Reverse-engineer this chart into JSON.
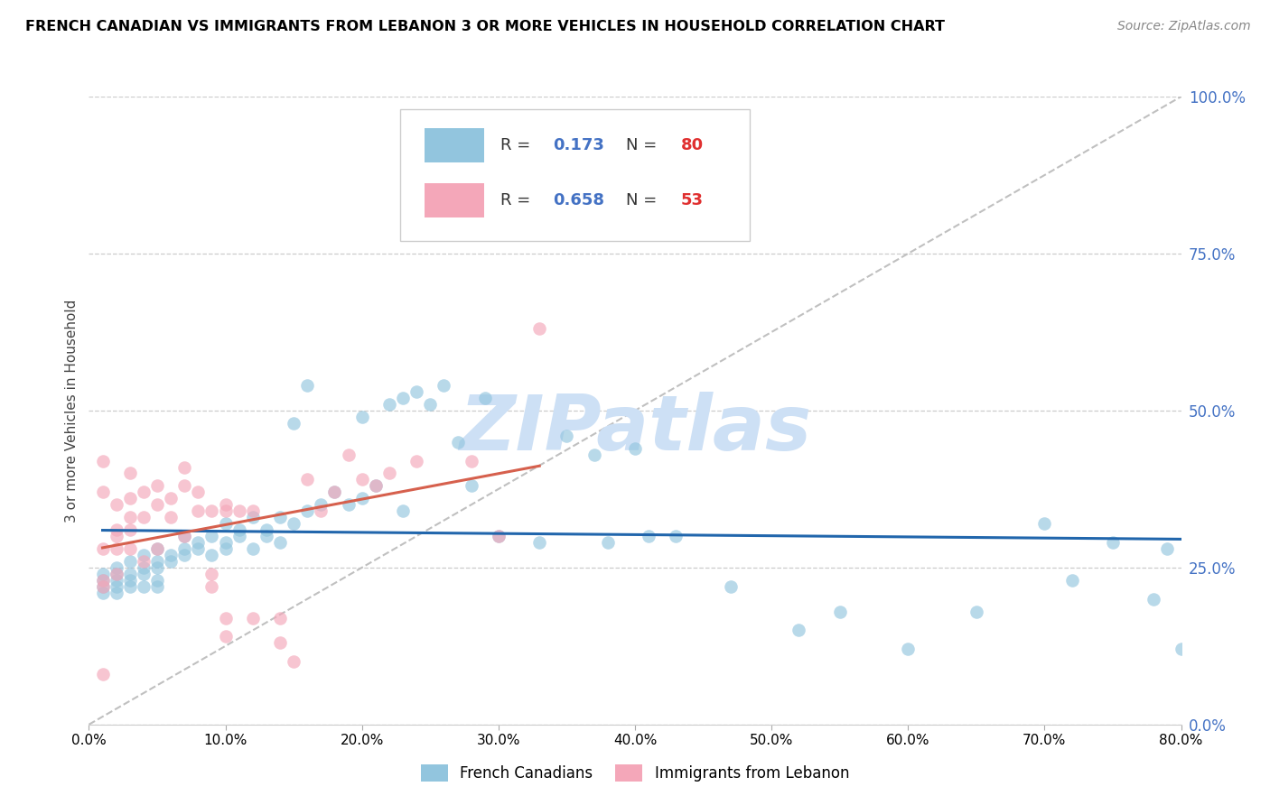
{
  "title": "FRENCH CANADIAN VS IMMIGRANTS FROM LEBANON 3 OR MORE VEHICLES IN HOUSEHOLD CORRELATION CHART",
  "source": "Source: ZipAtlas.com",
  "ylabel": "3 or more Vehicles in Household",
  "xlim": [
    0,
    80
  ],
  "ylim": [
    0,
    100
  ],
  "yticks": [
    0,
    25,
    50,
    75,
    100
  ],
  "xticks": [
    0,
    10,
    20,
    30,
    40,
    50,
    60,
    70,
    80
  ],
  "blue_color": "#92c5de",
  "pink_color": "#f4a7b9",
  "trend_blue": "#2166ac",
  "trend_pink": "#d6604d",
  "ref_color": "#c0c0c0",
  "tick_color_right": "#4472c4",
  "watermark_color": "#cde0f5",
  "blue_x": [
    1,
    1,
    1,
    1,
    2,
    2,
    2,
    2,
    2,
    3,
    3,
    3,
    3,
    4,
    4,
    4,
    4,
    5,
    5,
    5,
    5,
    5,
    6,
    6,
    7,
    7,
    7,
    8,
    8,
    9,
    9,
    10,
    10,
    10,
    11,
    11,
    12,
    12,
    13,
    13,
    14,
    14,
    15,
    15,
    16,
    16,
    17,
    18,
    19,
    20,
    20,
    21,
    22,
    23,
    23,
    24,
    25,
    26,
    27,
    28,
    29,
    30,
    33,
    35,
    37,
    38,
    40,
    41,
    43,
    47,
    52,
    55,
    60,
    65,
    70,
    72,
    75,
    78,
    79,
    80
  ],
  "blue_y": [
    22,
    23,
    24,
    21,
    25,
    22,
    24,
    21,
    23,
    26,
    23,
    22,
    24,
    25,
    27,
    24,
    22,
    28,
    26,
    25,
    23,
    22,
    27,
    26,
    28,
    30,
    27,
    29,
    28,
    30,
    27,
    32,
    29,
    28,
    30,
    31,
    33,
    28,
    31,
    30,
    33,
    29,
    48,
    32,
    54,
    34,
    35,
    37,
    35,
    36,
    49,
    38,
    51,
    52,
    34,
    53,
    51,
    54,
    45,
    38,
    52,
    30,
    29,
    46,
    43,
    29,
    44,
    30,
    30,
    22,
    15,
    18,
    12,
    18,
    32,
    23,
    29,
    20,
    28,
    12
  ],
  "pink_x": [
    1,
    1,
    1,
    1,
    1,
    1,
    2,
    2,
    2,
    2,
    2,
    3,
    3,
    3,
    3,
    3,
    4,
    4,
    4,
    5,
    5,
    5,
    6,
    6,
    7,
    7,
    7,
    8,
    8,
    9,
    9,
    9,
    10,
    10,
    10,
    10,
    11,
    12,
    12,
    14,
    14,
    15,
    16,
    17,
    18,
    19,
    20,
    21,
    22,
    24,
    28,
    30,
    33
  ],
  "pink_y": [
    23,
    37,
    28,
    42,
    22,
    8,
    35,
    28,
    31,
    24,
    30,
    40,
    36,
    31,
    33,
    28,
    33,
    37,
    26,
    38,
    35,
    28,
    36,
    33,
    41,
    38,
    30,
    37,
    34,
    34,
    22,
    24,
    14,
    17,
    35,
    34,
    34,
    34,
    17,
    13,
    17,
    10,
    39,
    34,
    37,
    43,
    39,
    38,
    40,
    42,
    42,
    30,
    63
  ]
}
